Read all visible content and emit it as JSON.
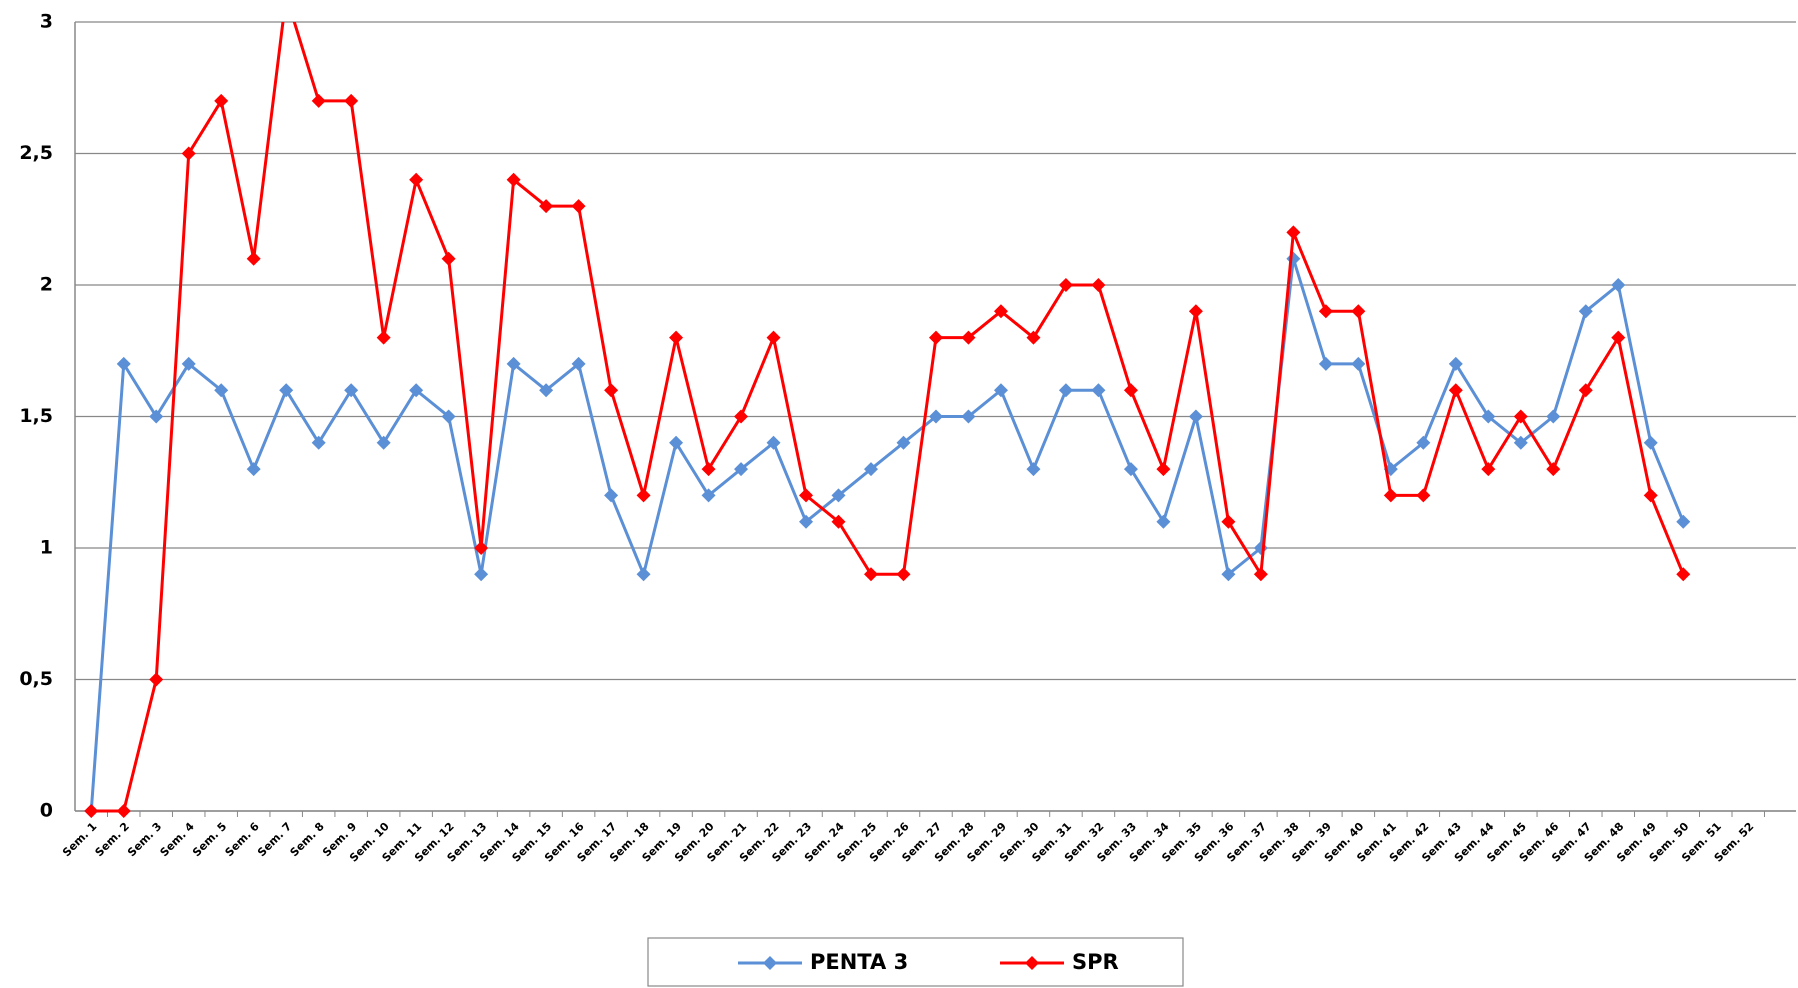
{
  "chart_data": {
    "type": "line",
    "categories": [
      "Sem. 1",
      "Sem. 2",
      "Sem. 3",
      "Sem. 4",
      "Sem. 5",
      "Sem. 6",
      "Sem. 7",
      "Sem. 8",
      "Sem. 9",
      "Sem. 10",
      "Sem. 11",
      "Sem. 12",
      "Sem. 13",
      "Sem. 14",
      "Sem. 15",
      "Sem. 16",
      "Sem. 17",
      "Sem. 18",
      "Sem. 19",
      "Sem. 20",
      "Sem. 21",
      "Sem. 22",
      "Sem. 23",
      "Sem. 24",
      "Sem. 25",
      "Sem. 26",
      "Sem. 27",
      "Sem. 28",
      "Sem. 29",
      "Sem. 30",
      "Sem. 31",
      "Sem. 32",
      "Sem. 33",
      "Sem. 34",
      "Sem. 35",
      "Sem. 36",
      "Sem. 37",
      "Sem. 38",
      "Sem. 39",
      "Sem. 40",
      "Sem. 41",
      "Sem. 42",
      "Sem. 43",
      "Sem. 44",
      "Sem. 45",
      "Sem. 46",
      "Sem. 47",
      "Sem. 48",
      "Sem. 49",
      "Sem. 50",
      "Sem. 51",
      "Sem. 52"
    ],
    "series": [
      {
        "name": "PENTA 3",
        "color": "#5b8fd6",
        "values": [
          0,
          1.7,
          1.5,
          1.7,
          1.6,
          1.3,
          1.6,
          1.4,
          1.6,
          1.4,
          1.6,
          1.5,
          0.9,
          1.7,
          1.6,
          1.7,
          1.2,
          0.9,
          1.4,
          1.2,
          1.3,
          1.4,
          1.1,
          1.2,
          1.3,
          1.4,
          1.5,
          1.5,
          1.6,
          1.3,
          1.6,
          1.6,
          1.3,
          1.1,
          1.5,
          0.9,
          1.0,
          2.1,
          1.7,
          1.7,
          1.3,
          1.4,
          1.7,
          1.5,
          1.4,
          1.5,
          1.9,
          2.0,
          1.4,
          1.1,
          null,
          null
        ]
      },
      {
        "name": "SPR",
        "color": "#ff0000",
        "values": [
          0,
          0,
          0.5,
          2.5,
          2.7,
          2.1,
          3.1,
          2.7,
          2.7,
          1.8,
          2.4,
          2.1,
          1.0,
          2.4,
          2.3,
          2.3,
          1.6,
          1.2,
          1.8,
          1.3,
          1.5,
          1.8,
          1.2,
          1.1,
          0.9,
          0.9,
          1.8,
          1.8,
          1.9,
          1.8,
          2.0,
          2.0,
          1.6,
          1.3,
          1.9,
          1.1,
          0.9,
          2.2,
          1.9,
          1.9,
          1.2,
          1.2,
          1.6,
          1.3,
          1.5,
          1.3,
          1.6,
          1.8,
          1.2,
          0.9,
          null,
          null
        ]
      }
    ],
    "ylim": [
      0,
      3
    ],
    "yticks": [
      0,
      {
        "value": 0.5,
        "label": "0,5"
      },
      1,
      {
        "value": 1.5,
        "label": "1,5"
      },
      2,
      {
        "value": 2.5,
        "label": "2,5"
      },
      3
    ],
    "grid": true,
    "legend": "bottom"
  }
}
